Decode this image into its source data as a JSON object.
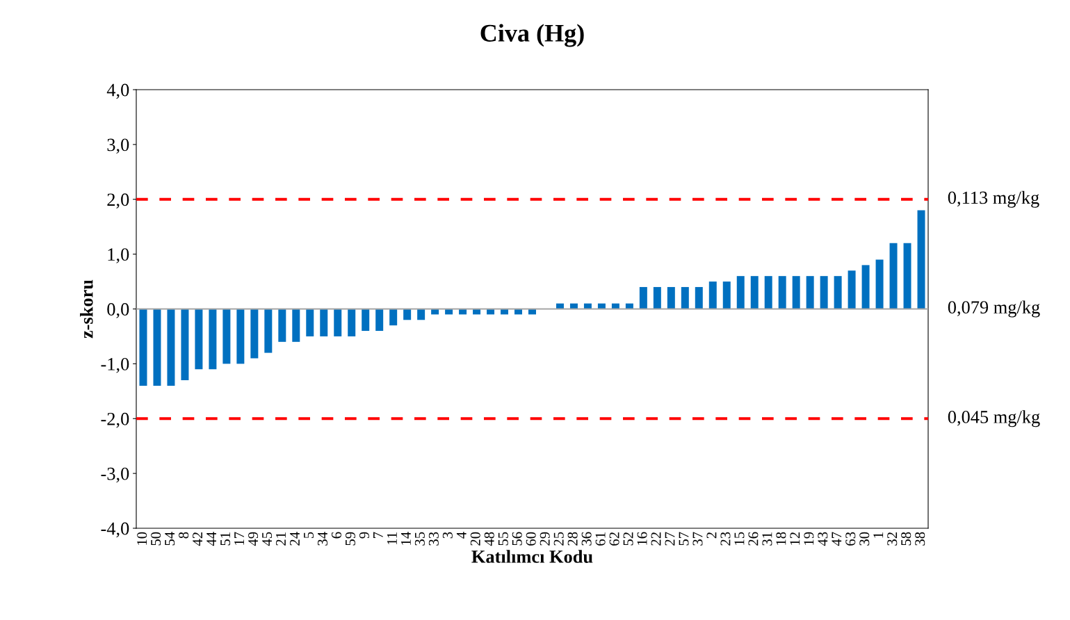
{
  "chart_data": {
    "type": "bar",
    "title": "Civa (Hg)",
    "xlabel": "Katılımcı Kodu",
    "ylabel": "z-skoru",
    "categories": [
      "10",
      "50",
      "54",
      "8",
      "42",
      "44",
      "51",
      "17",
      "49",
      "45",
      "21",
      "24",
      "5",
      "34",
      "6",
      "59",
      "9",
      "7",
      "11",
      "14",
      "35",
      "33",
      "3",
      "4",
      "20",
      "48",
      "55",
      "56",
      "60",
      "29",
      "25",
      "28",
      "36",
      "61",
      "62",
      "52",
      "16",
      "22",
      "27",
      "57",
      "37",
      "2",
      "23",
      "15",
      "26",
      "31",
      "18",
      "12",
      "19",
      "43",
      "47",
      "63",
      "30",
      "1",
      "32",
      "58",
      "38"
    ],
    "values": [
      -1.4,
      -1.4,
      -1.4,
      -1.3,
      -1.1,
      -1.1,
      -1.0,
      -1.0,
      -0.9,
      -0.8,
      -0.6,
      -0.6,
      -0.5,
      -0.5,
      -0.5,
      -0.5,
      -0.4,
      -0.4,
      -0.3,
      -0.2,
      -0.2,
      -0.1,
      -0.1,
      -0.1,
      -0.1,
      -0.1,
      -0.1,
      -0.1,
      -0.1,
      0,
      0.1,
      0.1,
      0.1,
      0.1,
      0.1,
      0.1,
      0.4,
      0.4,
      0.4,
      0.4,
      0.4,
      0.5,
      0.5,
      0.6,
      0.6,
      0.6,
      0.6,
      0.6,
      0.6,
      0.6,
      0.6,
      0.7,
      0.8,
      0.9,
      1.2,
      1.2,
      1.8
    ],
    "color": "#0070c0",
    "ylim": [
      -4,
      4
    ],
    "yticks": [
      {
        "value": -4,
        "label": "-4,0"
      },
      {
        "value": -3,
        "label": "-3,0"
      },
      {
        "value": -2,
        "label": "-2,0"
      },
      {
        "value": -1,
        "label": "-1,0"
      },
      {
        "value": 0,
        "label": "0,0"
      },
      {
        "value": 1,
        "label": "1,0"
      },
      {
        "value": 2,
        "label": "2,0"
      },
      {
        "value": 3,
        "label": "3,0"
      },
      {
        "value": 4,
        "label": "4,0"
      }
    ],
    "grid": false,
    "legend": false,
    "ref_lines": [
      {
        "axis": "y",
        "value": 2,
        "label": "0,113 mg/kg",
        "color": "#ff0000",
        "line_style": "dashed"
      },
      {
        "axis": "y",
        "value": 0,
        "label": "0,079 mg/kg",
        "color": "#a6a6a6",
        "line_style": "solid"
      },
      {
        "axis": "y",
        "value": -2,
        "label": "0,045 mg/kg",
        "color": "#ff0000",
        "line_style": "dashed"
      }
    ]
  }
}
